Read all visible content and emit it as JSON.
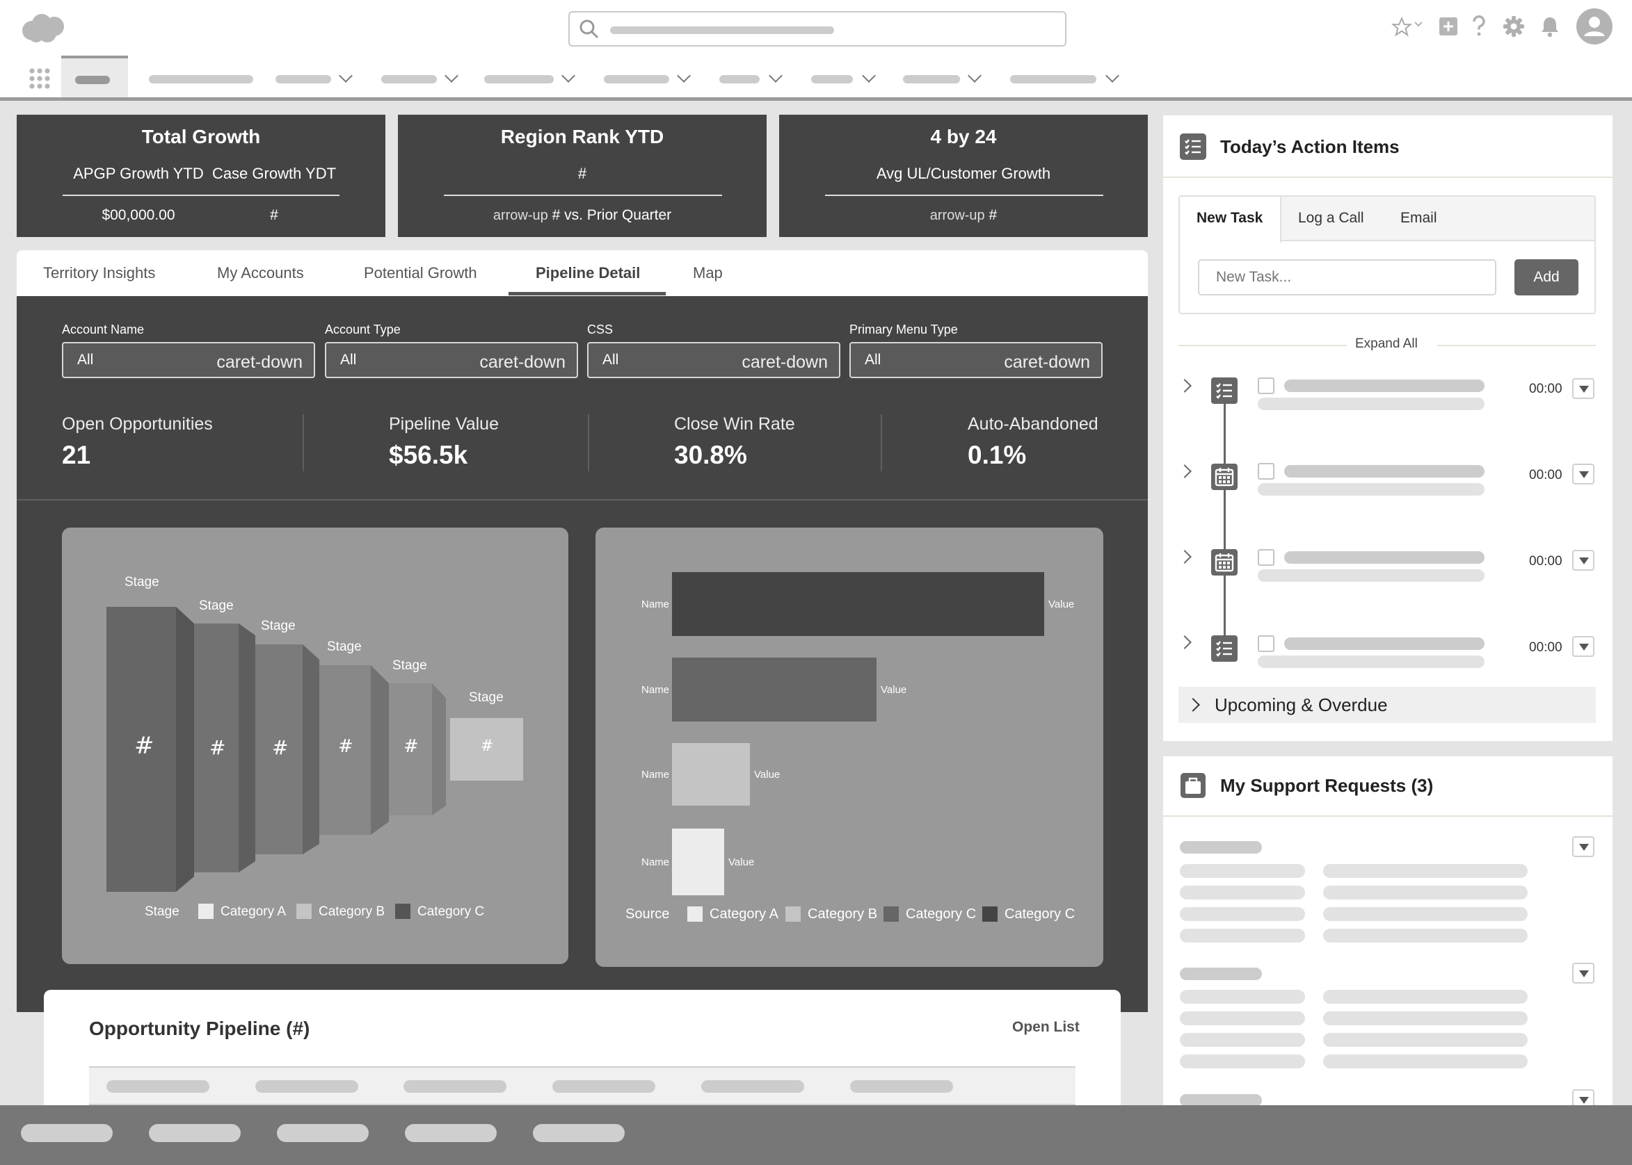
{
  "kpis": [
    {
      "title": "Total Growth",
      "label1": "APGP Growth YTD",
      "label2": "Case Growth YDT",
      "value1": "$00,000.00",
      "value2": "#"
    },
    {
      "title": "Region Rank YTD",
      "label": "#",
      "value": "arrow-up",
      "value_suffix": "#  vs. Prior Quarter"
    },
    {
      "title": "4 by 24",
      "label": "Avg UL/Customer Growth",
      "value": "arrow-up",
      "value_suffix": "#"
    }
  ],
  "tabs": {
    "items": [
      "Territory Insights",
      "My Accounts",
      "Potential Growth",
      "Pipeline Detail",
      "Map"
    ],
    "active": "Pipeline Detail"
  },
  "filters": [
    {
      "label": "Account Name",
      "value": "All",
      "caret": "caret-down"
    },
    {
      "label": "Account Type",
      "value": "All",
      "caret": "caret-down"
    },
    {
      "label": "CSS",
      "value": "All",
      "caret": "caret-down"
    },
    {
      "label": "Primary Menu Type",
      "value": "All",
      "caret": "caret-down"
    }
  ],
  "stats": [
    {
      "label": "Open Opportunities",
      "value": "21"
    },
    {
      "label": "Pipeline Value",
      "value": "$56.5k"
    },
    {
      "label": "Close Win Rate",
      "value": "30.8%"
    },
    {
      "label": "Auto-Abandoned",
      "value": "0.1%"
    }
  ],
  "funnel": {
    "stage_label": "Stage",
    "segment_value": "#",
    "axis_label": "Stage",
    "legend": [
      "Category A",
      "Category B",
      "Category C"
    ]
  },
  "barchart": {
    "name_label": "Name",
    "value_label": "Value",
    "axis_label": "Source",
    "legend": [
      "Category A",
      "Category B",
      "Category C",
      "Category C"
    ],
    "bar_shares": [
      1.0,
      0.55,
      0.21,
      0.14
    ]
  },
  "pipeline": {
    "title": "Opportunity Pipeline (#)",
    "link": "Open List"
  },
  "action_items": {
    "title": "Today’s Action Items",
    "tabs": [
      "New Task",
      "Log a Call",
      "Email"
    ],
    "active_tab": "New Task",
    "input_placeholder": "New Task...",
    "add_button": "Add",
    "expand_all": "Expand All",
    "times": [
      "00:00",
      "00:00",
      "00:00",
      "00:00"
    ],
    "upcoming": "Upcoming & Overdue"
  },
  "support": {
    "title": "My Support Requests (3)"
  },
  "colors": {
    "dark_panel": "#444444",
    "chart_bg": "#999999",
    "funnel_dark": "#666666"
  }
}
